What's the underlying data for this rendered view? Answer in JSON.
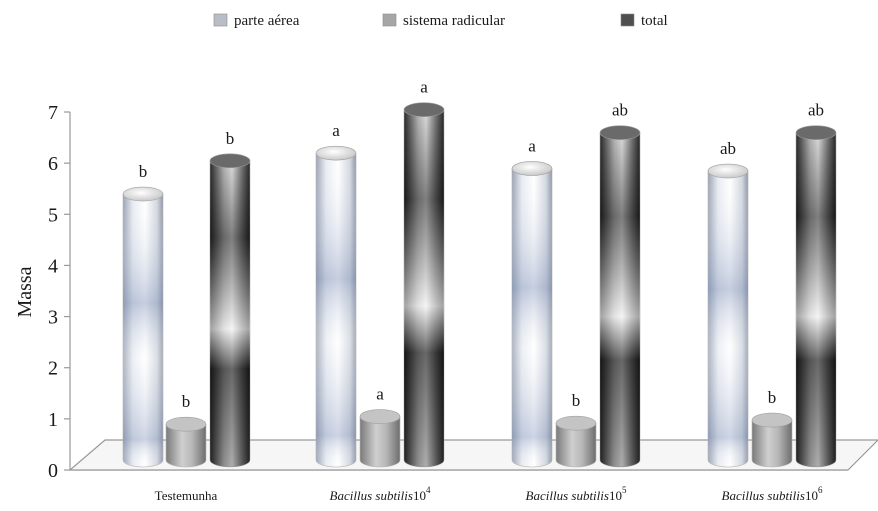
{
  "chart_data": {
    "type": "bar",
    "style": "3d-cylinder",
    "title": "",
    "xlabel": "",
    "ylabel": "Massa",
    "ylim": [
      0,
      7
    ],
    "yticks": [
      "0",
      "1",
      "2",
      "3",
      "4",
      "5",
      "6",
      "7"
    ],
    "grid": false,
    "legend_position": "top-center",
    "categories": [
      {
        "label": "Testemunha",
        "italic": "",
        "base": "",
        "exp": ""
      },
      {
        "label": "",
        "italic": "Bacillus subtilis",
        "base": "10",
        "exp": "4"
      },
      {
        "label": "",
        "italic": "Bacillus subtilis",
        "base": "10",
        "exp": "5"
      },
      {
        "label": "",
        "italic": "Bacillus subtilis",
        "base": "10",
        "exp": "6"
      }
    ],
    "series": [
      {
        "name": "parte aérea",
        "values": [
          5.2,
          6.0,
          5.7,
          5.65
        ],
        "letters": [
          "b",
          "a",
          "a",
          "ab"
        ],
        "color": "#c6ccd6"
      },
      {
        "name": "sistema radicular",
        "values": [
          0.7,
          0.85,
          0.72,
          0.78
        ],
        "letters": [
          "b",
          "a",
          "b",
          "b"
        ],
        "color": "#a8a8a8"
      },
      {
        "name": "total",
        "values": [
          5.85,
          6.85,
          6.4,
          6.4
        ],
        "letters": [
          "b",
          "a",
          "ab",
          "ab"
        ],
        "color": "#4a4a4a"
      }
    ]
  }
}
